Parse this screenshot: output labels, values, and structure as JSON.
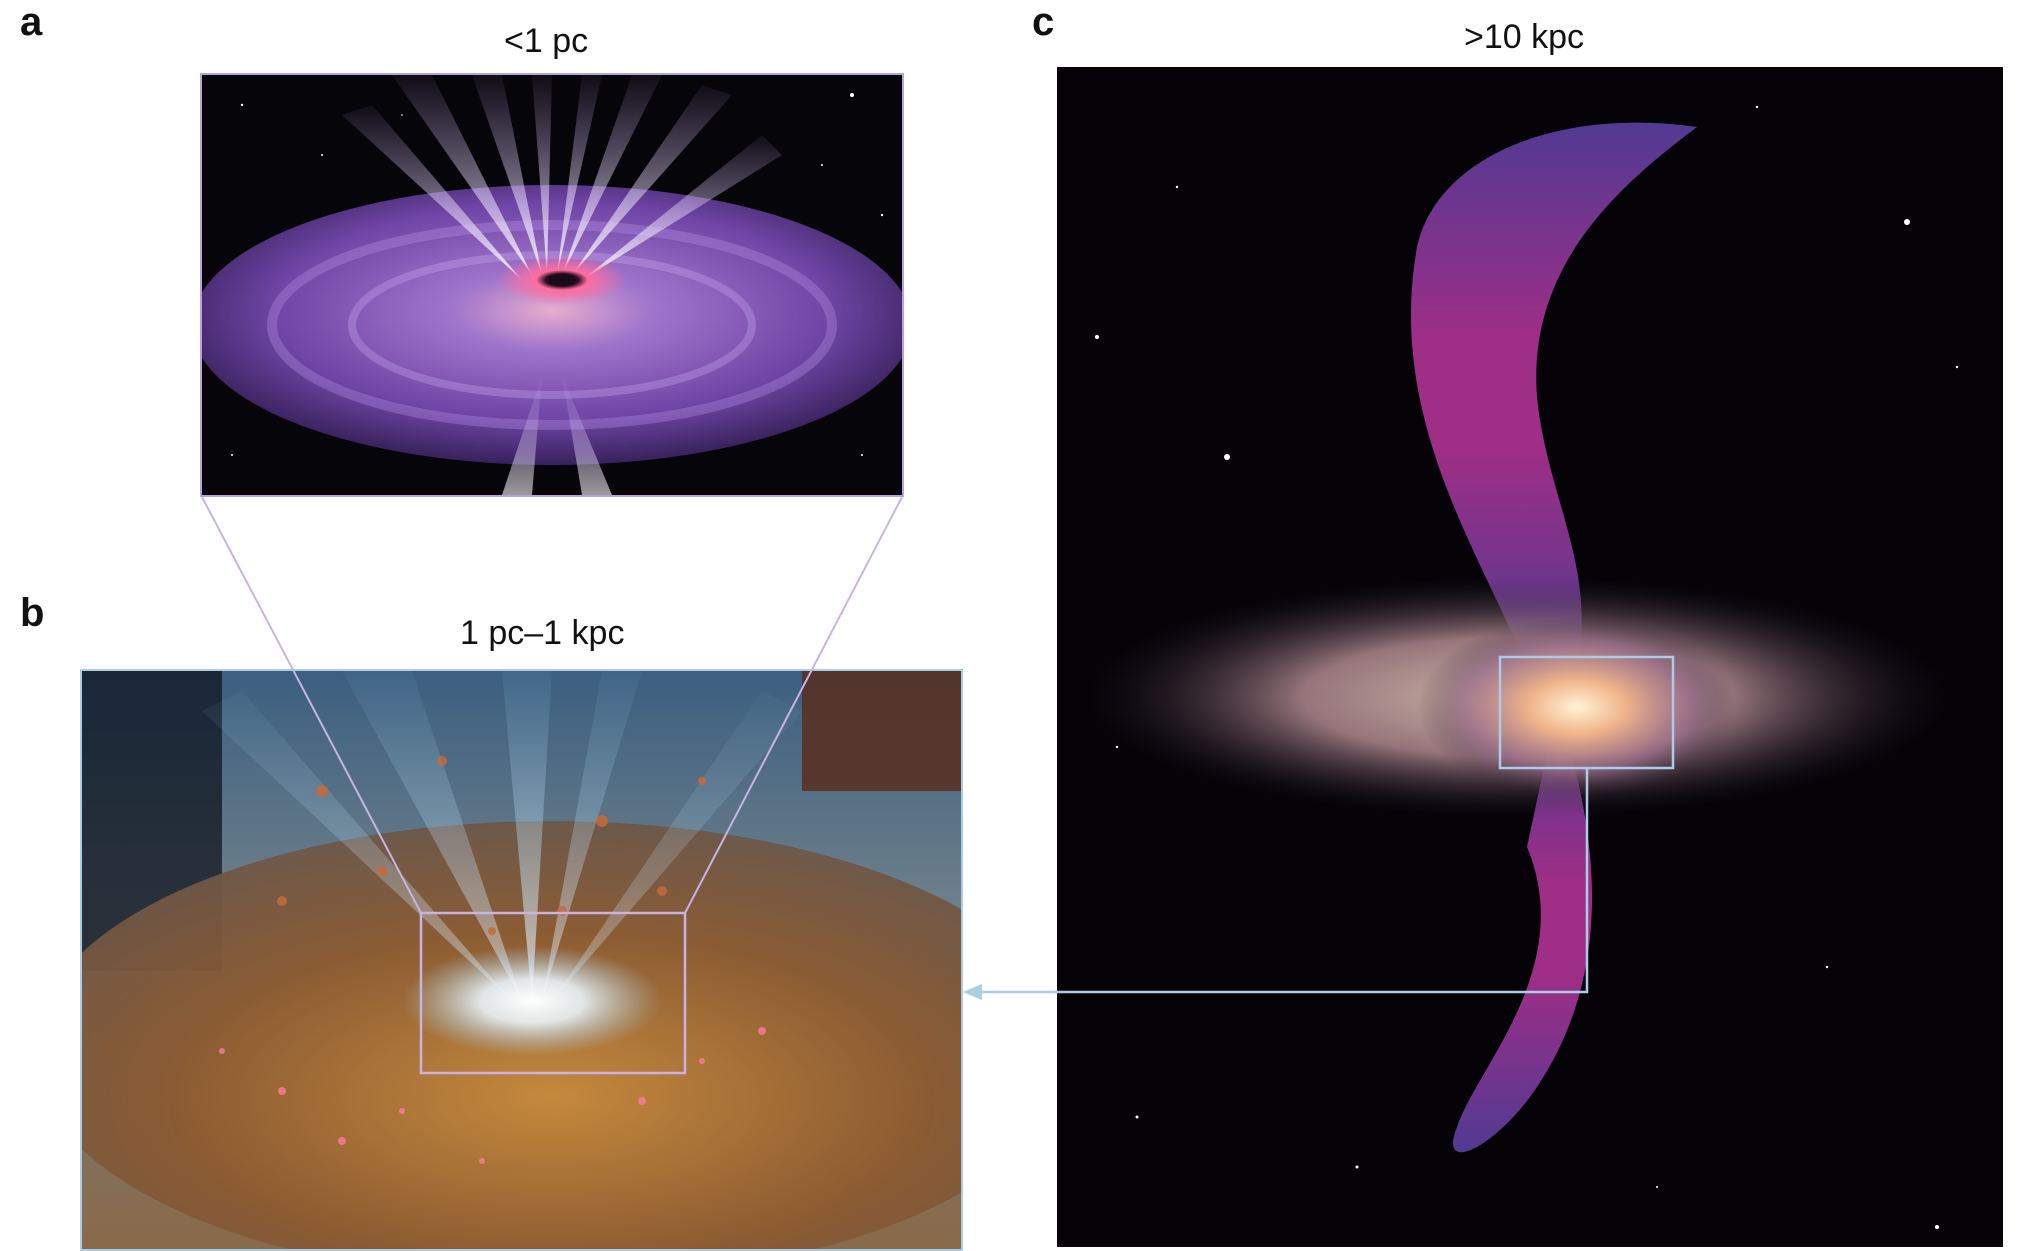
{
  "panels": {
    "a": {
      "letter": "a",
      "scale": "<1 pc"
    },
    "b": {
      "letter": "b",
      "scale": "1 pc–1 kpc"
    },
    "c": {
      "letter": "c",
      "scale": ">10 kpc"
    }
  },
  "colors": {
    "zoom_a_lines": "#c9b3e3",
    "zoom_b_box": "#c9b3e3",
    "zoom_c_box": "#a9cde6",
    "arrow": "#a9cde6",
    "disk_purple": "#7a4fb0",
    "dust_orange": "#b8752e",
    "jet_magenta": "#d23cb0",
    "sky": "#050308"
  },
  "icons": {
    "arrow": "arrow-left-icon"
  }
}
